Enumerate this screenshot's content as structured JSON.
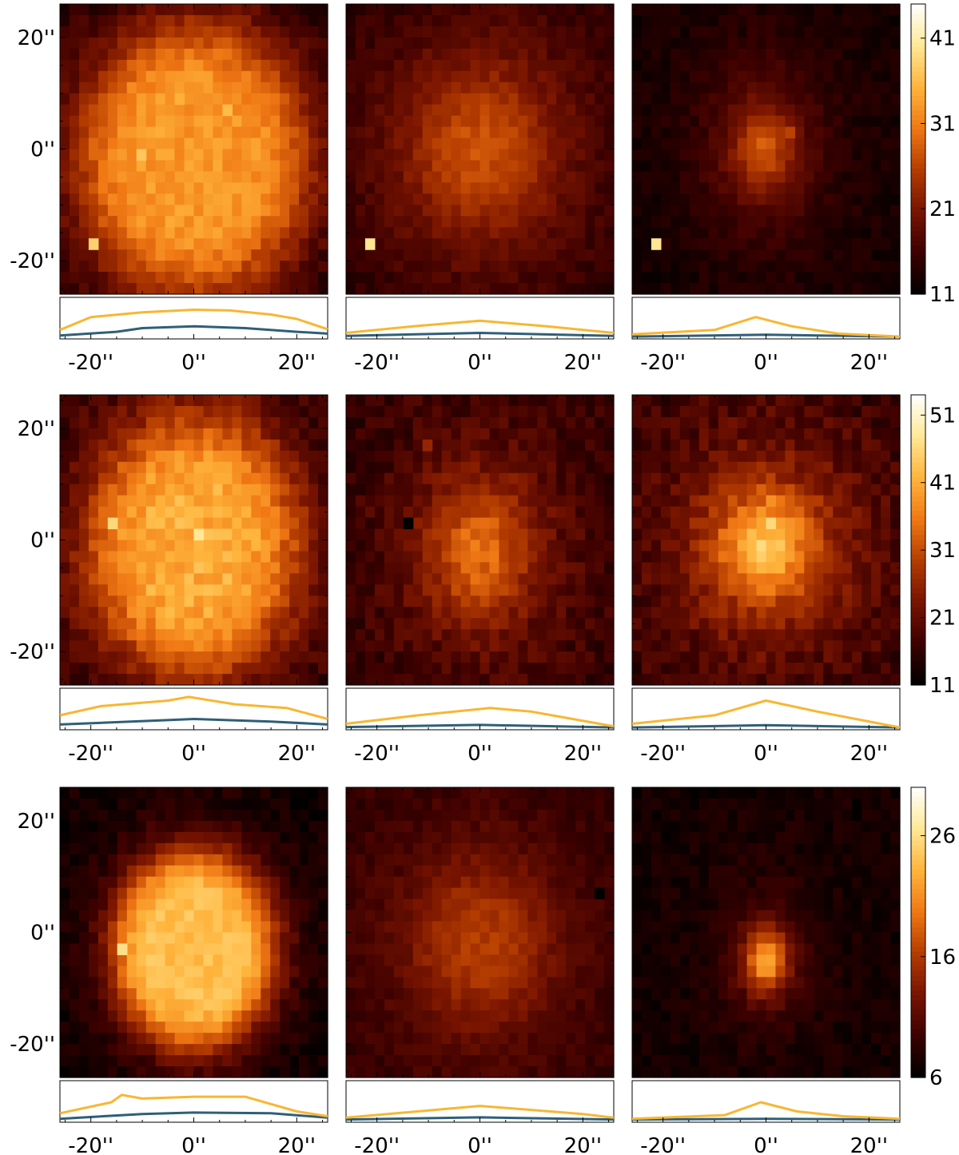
{
  "chart_data": {
    "type": "heatmap",
    "title": "",
    "xlabel": "",
    "ylabel": "",
    "axes": {
      "x_ticks": [
        "-20''",
        "0''",
        "20''"
      ],
      "y_ticks": [
        "20''",
        "0''",
        "-20''"
      ],
      "range_arcsec": [
        -26,
        26
      ]
    },
    "grid_shape": [
      28,
      26
    ],
    "colormap": [
      "#000000",
      "#3c0000",
      "#781400",
      "#b43c00",
      "#f07814",
      "#ffb43c",
      "#ffe896",
      "#ffffff"
    ],
    "profile_colors": {
      "upper": "#f7b733",
      "lower": "#2f5f78"
    },
    "rows": [
      {
        "colorbar_ticks": [
          "41",
          "31",
          "21",
          "11"
        ],
        "colorbar_range": [
          11,
          45
        ],
        "panels": [
          {
            "blob": {
              "cx": 0,
              "cy": -2,
              "rx": 23,
              "ry": 25,
              "sharp": 6,
              "peak": 33,
              "bg": 13,
              "noise": 1.8
            },
            "hot_pixels": [
              {
                "x": -20,
                "y": -17,
                "v": 38
              },
              {
                "x": -10,
                "y": 0,
                "v": 37
              },
              {
                "x": 7,
                "y": 7,
                "v": 36
              },
              {
                "x": -3,
                "y": 10,
                "v": 35
              }
            ],
            "profile_upper": [
              [
                -26,
                0.2
              ],
              [
                -20,
                0.55
              ],
              [
                -10,
                0.68
              ],
              [
                0,
                0.75
              ],
              [
                7,
                0.73
              ],
              [
                15,
                0.62
              ],
              [
                20,
                0.5
              ],
              [
                26,
                0.22
              ]
            ],
            "profile_lower": [
              [
                -26,
                0.05
              ],
              [
                -15,
                0.15
              ],
              [
                -10,
                0.25
              ],
              [
                0,
                0.3
              ],
              [
                10,
                0.25
              ],
              [
                20,
                0.15
              ],
              [
                26,
                0.1
              ]
            ]
          },
          {
            "blob": {
              "cx": 0,
              "cy": 0,
              "rx": 16,
              "ry": 17,
              "sharp": 2.5,
              "peak": 27,
              "bg": 13,
              "noise": 1.4
            },
            "hot_pixels": [
              {
                "x": -22,
                "y": -17,
                "v": 40
              }
            ],
            "profile_upper": [
              [
                -26,
                0.12
              ],
              [
                -13,
                0.3
              ],
              [
                0,
                0.45
              ],
              [
                13,
                0.3
              ],
              [
                26,
                0.12
              ]
            ],
            "profile_lower": [
              [
                -26,
                0.04
              ],
              [
                0,
                0.12
              ],
              [
                26,
                0.04
              ]
            ]
          },
          {
            "blob": {
              "cx": -0.5,
              "cy": 0,
              "rx": 6.5,
              "ry": 8.5,
              "sharp": 2,
              "peak": 28,
              "bg": 12,
              "noise": 1.2
            },
            "hot_pixels": [
              {
                "x": -21,
                "y": -17,
                "v": 40
              },
              {
                "x": 5,
                "y": 3,
                "v": 26
              }
            ],
            "profile_upper": [
              [
                -26,
                0.08
              ],
              [
                -10,
                0.2
              ],
              [
                -2,
                0.55
              ],
              [
                5,
                0.3
              ],
              [
                14,
                0.1
              ],
              [
                26,
                0.02
              ]
            ],
            "profile_lower": [
              [
                -26,
                0.02
              ],
              [
                0,
                0.07
              ],
              [
                26,
                0.02
              ]
            ]
          }
        ]
      },
      {
        "colorbar_ticks": [
          "51",
          "41",
          "31",
          "21",
          "11"
        ],
        "colorbar_range": [
          11,
          54
        ],
        "panels": [
          {
            "blob": {
              "cx": 0,
              "cy": -1,
              "rx": 21,
              "ry": 24,
              "sharp": 5,
              "peak": 41,
              "bg": 14,
              "noise": 2.8
            },
            "hot_pixels": [
              {
                "x": -16,
                "y": 4,
                "v": 46
              },
              {
                "x": 0,
                "y": 2,
                "v": 48
              }
            ],
            "profile_upper": [
              [
                -26,
                0.35
              ],
              [
                -18,
                0.6
              ],
              [
                -5,
                0.75
              ],
              [
                -1,
                0.85
              ],
              [
                8,
                0.65
              ],
              [
                18,
                0.55
              ],
              [
                26,
                0.25
              ]
            ],
            "profile_lower": [
              [
                -26,
                0.1
              ],
              [
                -5,
                0.22
              ],
              [
                0,
                0.25
              ],
              [
                15,
                0.18
              ],
              [
                26,
                0.1
              ]
            ]
          },
          {
            "blob": {
              "cx": 0,
              "cy": -2,
              "rx": 11,
              "ry": 13,
              "sharp": 2.5,
              "peak": 34,
              "bg": 15,
              "noise": 2.6
            },
            "hot_pixels": [
              {
                "x": -14,
                "y": 4,
                "v": 8
              },
              {
                "x": -11,
                "y": 18,
                "v": 26
              }
            ],
            "profile_upper": [
              [
                -26,
                0.12
              ],
              [
                -12,
                0.35
              ],
              [
                2,
                0.55
              ],
              [
                10,
                0.45
              ],
              [
                26,
                0.05
              ]
            ],
            "profile_lower": [
              [
                -26,
                0.03
              ],
              [
                0,
                0.09
              ],
              [
                26,
                0.02
              ]
            ]
          },
          {
            "blob": {
              "cx": 0,
              "cy": -1,
              "rx": 11,
              "ry": 11,
              "sharp": 2,
              "peak": 44,
              "bg": 14,
              "noise": 3
            },
            "hot_pixels": [
              {
                "x": 1,
                "y": 8,
                "v": 38
              },
              {
                "x": 0,
                "y": 4,
                "v": 46
              }
            ],
            "profile_upper": [
              [
                -26,
                0.12
              ],
              [
                -10,
                0.35
              ],
              [
                0,
                0.75
              ],
              [
                10,
                0.45
              ],
              [
                26,
                0.02
              ]
            ],
            "profile_lower": [
              [
                -26,
                0.02
              ],
              [
                0,
                0.08
              ],
              [
                26,
                0.02
              ]
            ]
          }
        ]
      },
      {
        "colorbar_ticks": [
          "26",
          "16",
          "6"
        ],
        "colorbar_range": [
          6,
          30
        ],
        "panels": [
          {
            "blob": {
              "cx": 0,
              "cy": -3,
              "rx": 16,
              "ry": 18,
              "sharp": 7,
              "peak": 24,
              "bg": 7,
              "noise": 1.1
            },
            "hot_pixels": [
              {
                "x": -14,
                "y": -2,
                "v": 27
              },
              {
                "x": -14,
                "y": -4,
                "v": 26
              }
            ],
            "profile_upper": [
              [
                -26,
                0.2
              ],
              [
                -16,
                0.5
              ],
              [
                -14,
                0.7
              ],
              [
                -10,
                0.6
              ],
              [
                0,
                0.65
              ],
              [
                10,
                0.65
              ],
              [
                20,
                0.25
              ],
              [
                26,
                0.12
              ]
            ],
            "profile_lower": [
              [
                -26,
                0.05
              ],
              [
                -10,
                0.18
              ],
              [
                0,
                0.22
              ],
              [
                15,
                0.2
              ],
              [
                26,
                0.08
              ]
            ]
          },
          {
            "blob": {
              "cx": 0,
              "cy": -2,
              "rx": 14,
              "ry": 15,
              "sharp": 3,
              "peak": 16,
              "bg": 8.5,
              "noise": 0.9
            },
            "hot_pixels": [
              {
                "x": 24,
                "y": 7,
                "v": 5
              }
            ],
            "profile_upper": [
              [
                -26,
                0.08
              ],
              [
                0,
                0.4
              ],
              [
                20,
                0.18
              ],
              [
                26,
                0.08
              ]
            ],
            "profile_lower": [
              [
                -26,
                0.03
              ],
              [
                0,
                0.09
              ],
              [
                26,
                0.03
              ]
            ]
          },
          {
            "blob": {
              "cx": 0,
              "cy": -5,
              "rx": 4,
              "ry": 5.5,
              "sharp": 2.5,
              "peak": 22,
              "bg": 7,
              "noise": 0.9
            },
            "hot_pixels": [],
            "profile_upper": [
              [
                -26,
                0.05
              ],
              [
                -8,
                0.15
              ],
              [
                -1,
                0.5
              ],
              [
                6,
                0.25
              ],
              [
                15,
                0.12
              ],
              [
                26,
                0.05
              ]
            ],
            "profile_lower": [
              [
                -26,
                0.03
              ],
              [
                0,
                0.05
              ],
              [
                26,
                0.03
              ]
            ]
          }
        ]
      }
    ]
  }
}
